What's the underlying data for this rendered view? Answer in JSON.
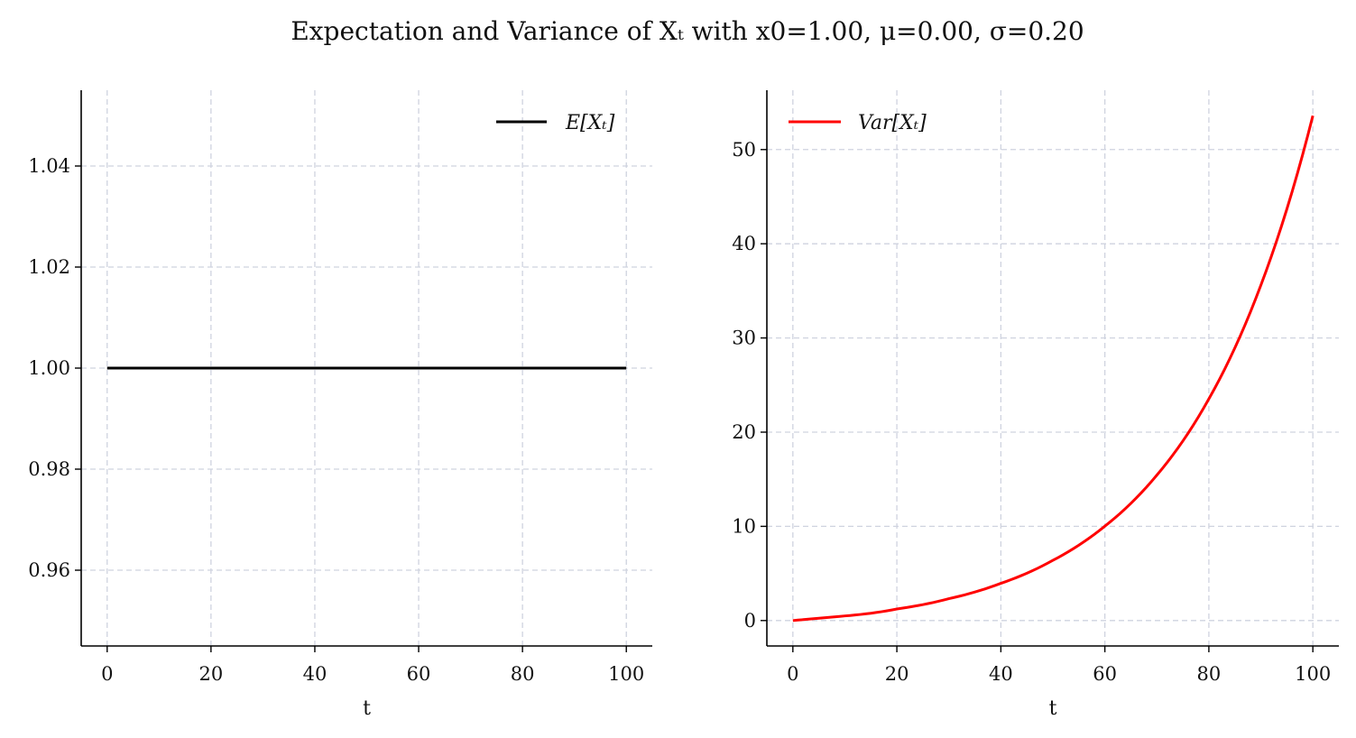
{
  "figure": {
    "title": "Expectation and Variance of Xₜ with x0=1.00, μ=0.00, σ=0.20"
  },
  "chart_data": [
    {
      "type": "line",
      "xlabel": "t",
      "ylabel": "",
      "xlim": [
        -5,
        105
      ],
      "ylim": [
        0.945,
        1.055
      ],
      "xticks": [
        0,
        20,
        40,
        60,
        80,
        100
      ],
      "yticks": [
        0.96,
        0.98,
        1.0,
        1.02,
        1.04
      ],
      "ytick_labels": [
        "0.96",
        "0.98",
        "1.00",
        "1.02",
        "1.04"
      ],
      "grid": true,
      "legend_position": "top-right",
      "series": [
        {
          "name": "E[Xₜ]",
          "color": "#000000",
          "x": [
            0,
            100
          ],
          "y": [
            1.0,
            1.0
          ]
        }
      ]
    },
    {
      "type": "line",
      "xlabel": "t",
      "ylabel": "",
      "xlim": [
        -5,
        105
      ],
      "ylim": [
        -2.7,
        56.3
      ],
      "xticks": [
        0,
        20,
        40,
        60,
        80,
        100
      ],
      "yticks": [
        0,
        10,
        20,
        30,
        40,
        50
      ],
      "ytick_labels": [
        "0",
        "10",
        "20",
        "30",
        "40",
        "50"
      ],
      "grid": true,
      "legend_position": "top-left",
      "series": [
        {
          "name": "Var[Xₜ]",
          "color": "#ff0000",
          "x": [
            0,
            10,
            20,
            30,
            40,
            50,
            60,
            70,
            80,
            90,
            100
          ],
          "y": [
            0,
            0.49,
            1.23,
            2.32,
            3.95,
            6.39,
            10.02,
            15.44,
            23.53,
            35.6,
            53.6
          ]
        }
      ]
    }
  ]
}
